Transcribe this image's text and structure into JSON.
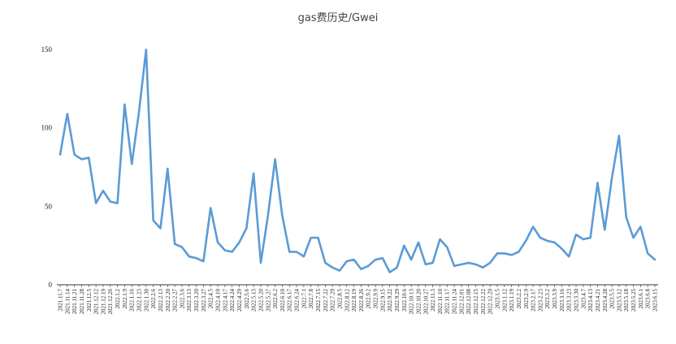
{
  "chart_data": {
    "type": "line",
    "title": "gas费历史/Gwei",
    "xlabel": "",
    "ylabel": "",
    "ylim": [
      0,
      150
    ],
    "yticks": [
      0,
      50,
      100,
      150
    ],
    "grid": false,
    "legend": "none",
    "line_color": "#5b9bd5",
    "x": [
      "2021.11.7",
      "2021.11.14",
      "2021.11.21",
      "2021.11.28",
      "2021.12.5",
      "2021.12.12",
      "2021.12.19",
      "2021.12.26",
      "2022.1.2",
      "2022.1.9",
      "2022.1.16",
      "2022.1.23",
      "2022.1.30",
      "2022.2.6",
      "2022.2.13",
      "2022.2.20",
      "2022.2.27",
      "2022.3.6",
      "2022.3.13",
      "2022.3.20",
      "2022.3.27",
      "2022.4.5",
      "2022.4.10",
      "2022.4.17",
      "2022.4.24",
      "2022.4.29",
      "2022.5.6",
      "2022.5.13",
      "2022.5.20",
      "2022.5.27",
      "2022.6.2",
      "2022.6.10",
      "2022.6.17",
      "2022.6.24",
      "2022.7.1",
      "2022.7.8",
      "2022.7.15",
      "2022.7.22",
      "2022.7.29",
      "2022.8.5",
      "2022.8.12",
      "2022.8.19",
      "2022.8.26",
      "2022.9.2",
      "2022.9.9",
      "2022.9.15",
      "2022.9.22",
      "2022.9.29",
      "2022.10.6",
      "2022.10.13",
      "2022.10.20",
      "2022.10.27",
      "2022.11.3",
      "2022.11.10",
      "2022.11.17",
      "2022.11.24",
      "2022.12.01",
      "2022.12.08",
      "2022.12.15",
      "2022.12.22",
      "2022.12.29",
      "2023.1.5",
      "2023.1.12",
      "2023.1.19",
      "2023.2.2",
      "2023.2.9",
      "2023.2.17",
      "2023.2.23",
      "2023.3.2",
      "2023.3.9",
      "2023.3.16",
      "2023.3.23",
      "2023.3.30",
      "2023.4.7",
      "2023.4.13",
      "2023.4.21",
      "2023.4.28",
      "2023.5.5",
      "2023.5.12",
      "2023.5.18",
      "2023.5.25",
      "2023.6.1",
      "2023.6.8",
      "2023.6.15"
    ],
    "values": [
      83,
      109,
      83,
      80,
      81,
      52,
      60,
      53,
      52,
      115,
      77,
      110,
      150,
      41,
      36,
      74,
      26,
      24,
      18,
      17,
      15,
      49,
      27,
      22,
      21,
      27,
      36,
      71,
      14,
      44,
      80,
      44,
      21,
      21,
      18,
      30,
      30,
      14,
      11,
      9,
      15,
      16,
      10,
      12,
      16,
      17,
      8,
      11,
      25,
      16,
      27,
      13,
      14,
      29,
      24,
      12,
      13,
      14,
      13,
      11,
      14,
      20,
      20,
      19,
      21,
      28,
      37,
      30,
      28,
      27,
      23,
      18,
      32,
      29,
      30,
      65,
      35,
      68,
      95,
      43,
      30,
      37,
      20,
      16
    ]
  }
}
